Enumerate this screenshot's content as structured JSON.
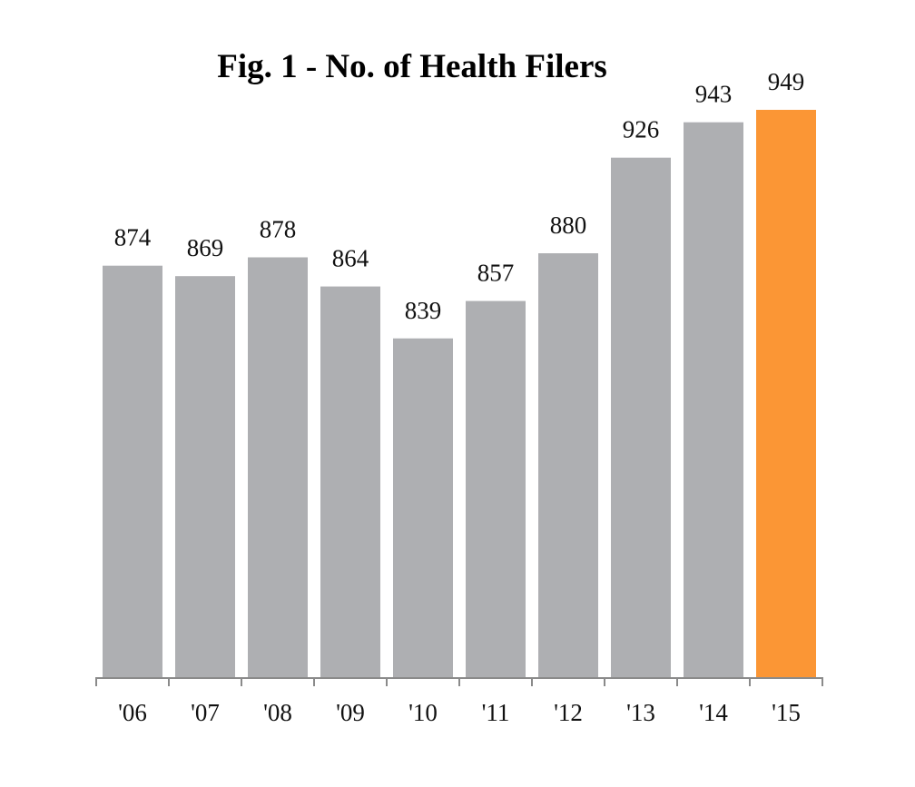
{
  "chart_data": {
    "type": "bar",
    "title": "Fig. 1 - No. of Health Filers",
    "xlabel": "",
    "ylabel": "",
    "categories": [
      "'06",
      "'07",
      "'08",
      "'09",
      "'10",
      "'11",
      "'12",
      "'13",
      "'14",
      "'15"
    ],
    "values": [
      874,
      869,
      878,
      864,
      839,
      857,
      880,
      926,
      943,
      949
    ],
    "data_labels": [
      "874",
      "869",
      "878",
      "864",
      "839",
      "857",
      "880",
      "926",
      "943",
      "949"
    ],
    "highlight_index": 9,
    "ylim": [
      676,
      949
    ],
    "grid": false,
    "legend": "none",
    "colors": {
      "bar": "#aeafb2",
      "highlight": "#fb9635",
      "axis": "#8a8a8a",
      "text": "#111111"
    }
  }
}
